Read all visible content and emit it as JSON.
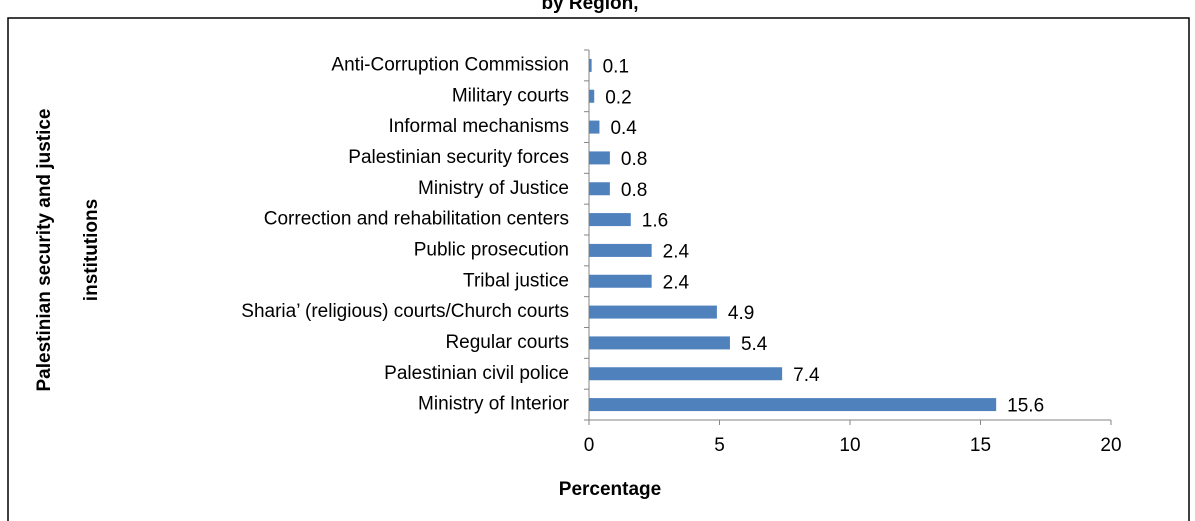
{
  "chart_data": {
    "type": "hbar",
    "title": "by Region,",
    "categories": [
      "Anti-Corruption Commission",
      "Military courts",
      "Informal mechanisms",
      "Palestinian security forces",
      "Ministry of Justice",
      "Correction and rehabilitation centers",
      "Public prosecution",
      "Tribal justice",
      "Sharia’ (religious) courts/Church courts",
      "Regular courts",
      "Palestinian civil police",
      "Ministry of Interior"
    ],
    "values": [
      0.1,
      0.2,
      0.4,
      0.8,
      0.8,
      1.6,
      2.4,
      2.4,
      4.9,
      5.4,
      7.4,
      15.6
    ],
    "color": "#4f81bd",
    "xlim": [
      0,
      20
    ],
    "xticks": [
      0,
      5,
      10,
      15,
      20
    ],
    "xlabel": "Percentage",
    "ylabel": [
      "Palestinian security and justice",
      "institutions"
    ]
  }
}
